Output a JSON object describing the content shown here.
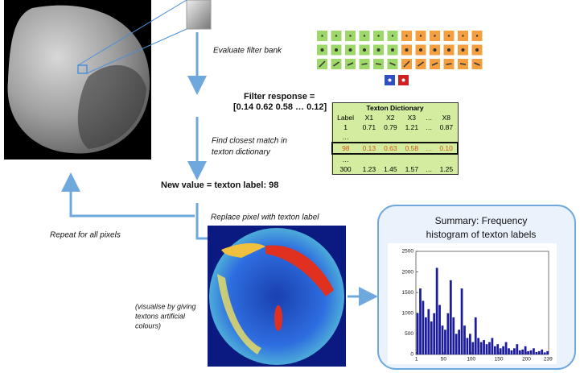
{
  "steps": {
    "evaluate": "Evaluate filter bank",
    "filter_response_title": "Filter response =",
    "filter_response_values": "[0.14   0.62   0.58   …   0.12]",
    "find_match": [
      "Find closest match in",
      "texton dictionary"
    ],
    "new_value": "New value = texton label:  98",
    "replace": "Replace pixel with texton label",
    "repeat": "Repeat for all pixels",
    "visualise": [
      "(visualise by giving",
      "textons artificial",
      "colours)"
    ]
  },
  "table": {
    "title": "Texton Dictionary",
    "header": [
      "Label",
      "X1",
      "X2",
      "X3",
      "…",
      "X8"
    ],
    "rows": [
      [
        "1",
        "0.71",
        "0.79",
        "1.21",
        "…",
        "0.87"
      ],
      [
        "…",
        "",
        "",
        "",
        "",
        ""
      ],
      [
        "98",
        "0.13",
        "0.63",
        "0.58",
        "…",
        "0.10"
      ],
      [
        "…",
        "",
        "",
        "",
        "",
        ""
      ],
      [
        "300",
        "1.23",
        "1.45",
        "1.57",
        "…",
        "1.25"
      ]
    ],
    "highlight_row": 2
  },
  "summary": {
    "title": [
      "Summary:  Frequency",
      "histogram  of texton labels"
    ],
    "histogram": {
      "color": "#1c1c9c",
      "xlim": [
        0,
        240
      ],
      "ylim": [
        0,
        2500
      ],
      "xticks": [
        1,
        50,
        100,
        150,
        200,
        239
      ],
      "yticks": [
        0,
        500,
        1000,
        1500,
        2000,
        2500
      ],
      "x": [
        1,
        6,
        11,
        16,
        21,
        26,
        31,
        36,
        41,
        46,
        51,
        56,
        61,
        66,
        71,
        76,
        81,
        86,
        91,
        96,
        101,
        106,
        111,
        116,
        121,
        126,
        131,
        136,
        141,
        146,
        151,
        156,
        161,
        166,
        171,
        176,
        181,
        186,
        191,
        196,
        201,
        206,
        211,
        216,
        221,
        226,
        231,
        236
      ],
      "values": [
        1000,
        1600,
        1300,
        900,
        1100,
        800,
        1000,
        2100,
        1200,
        700,
        600,
        1000,
        1800,
        900,
        500,
        600,
        1600,
        700,
        400,
        500,
        300,
        900,
        400,
        300,
        350,
        250,
        300,
        400,
        200,
        250,
        150,
        200,
        300,
        150,
        100,
        150,
        250,
        100,
        120,
        200,
        80,
        100,
        150,
        60,
        80,
        120,
        50,
        80
      ]
    }
  }
}
